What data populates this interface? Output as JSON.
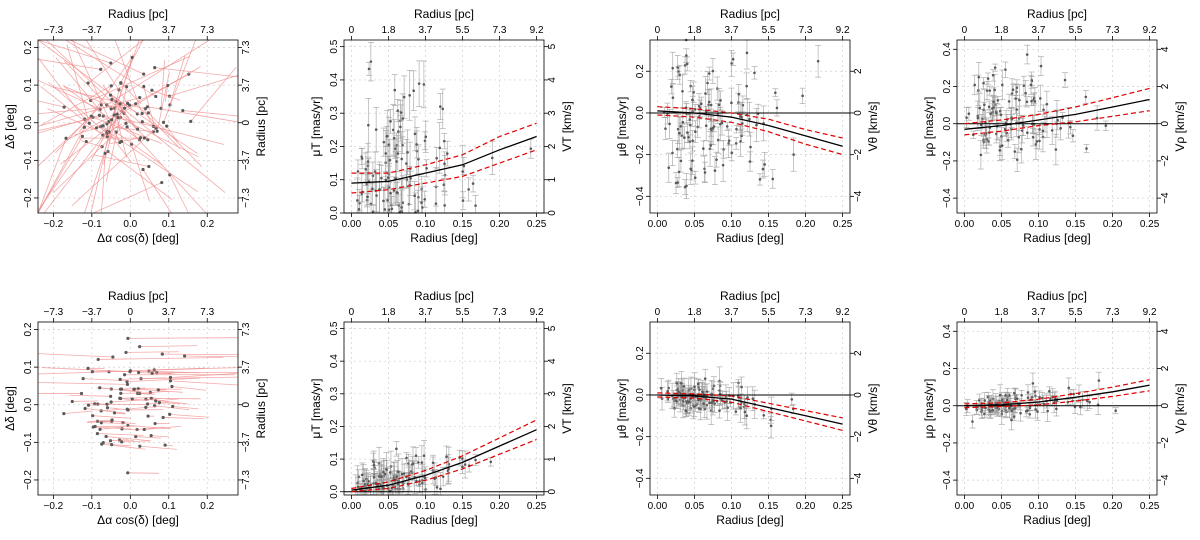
{
  "chart_data": [
    {
      "id": "r1c1",
      "type": "scatter",
      "subtype": "vector-field",
      "xlabel": "Δα cos(δ) [deg]",
      "ylabel": "Δδ [deg]",
      "x2label": "Radius [pc]",
      "y2label": "Radius [pc]",
      "xlim": [
        -0.24,
        0.28
      ],
      "ylim": [
        -0.24,
        0.22
      ],
      "xticks": [
        -0.2,
        -0.1,
        0.0,
        0.1,
        0.2
      ],
      "xtick_labels": [
        "−0.2",
        "−0.1",
        "0.0",
        "0.1",
        "0.2"
      ],
      "yticks": [
        -0.2,
        -0.1,
        0.0,
        0.1,
        0.2
      ],
      "ytick_labels": [
        "−0.2",
        "−0.1",
        "0.0",
        "0.1",
        "0.2"
      ],
      "x2ticks": [
        -0.2,
        -0.1,
        0.0,
        0.1,
        0.2
      ],
      "x2tick_labels": [
        "−7.3",
        "−3.7",
        "0",
        "3.7",
        "7.3"
      ],
      "y2ticks": [
        -0.2,
        -0.1,
        0.0,
        0.1,
        0.2
      ],
      "y2tick_labels": [
        "−7.3",
        "−3.7",
        "0",
        "3.7",
        "7.3"
      ],
      "vector_scale": 1.0,
      "n_points": 95,
      "seed": 11
    },
    {
      "id": "r1c2",
      "type": "scatter",
      "subtype": "profile",
      "metric": "total",
      "xlabel": "Radius [deg]",
      "ylabel": "μT [mas/yr]",
      "x2label": "Radius [pc]",
      "y2label": "VT [km/s]",
      "xlim": [
        -0.01,
        0.26
      ],
      "ylim": [
        0.0,
        0.52
      ],
      "xticks": [
        0.0,
        0.05,
        0.1,
        0.15,
        0.2,
        0.25
      ],
      "xtick_labels": [
        "0.00",
        "0.05",
        "0.10",
        "0.15",
        "0.20",
        "0.25"
      ],
      "yticks": [
        0.0,
        0.1,
        0.2,
        0.3,
        0.4,
        0.5
      ],
      "ytick_labels": [
        "0.0",
        "0.1",
        "0.2",
        "0.3",
        "0.4",
        "0.5"
      ],
      "x2ticks": [
        0.0,
        0.05,
        0.1,
        0.15,
        0.2,
        0.25
      ],
      "x2tick_labels": [
        "0",
        "1.8",
        "3.7",
        "5.5",
        "7.3",
        "9.2"
      ],
      "y2ticks": [
        0,
        1,
        2,
        3,
        4,
        5
      ],
      "y2tick_labels": [
        "0",
        "1",
        "2",
        "3",
        "4",
        "5"
      ],
      "y2lim": [
        0,
        5.2
      ],
      "trend_x": [
        0.0,
        0.05,
        0.1,
        0.15,
        0.2,
        0.25
      ],
      "trend_y": [
        0.09,
        0.095,
        0.12,
        0.145,
        0.19,
        0.23
      ],
      "ci_upper": [
        0.12,
        0.12,
        0.145,
        0.175,
        0.23,
        0.27
      ],
      "ci_lower": [
        0.06,
        0.07,
        0.09,
        0.11,
        0.15,
        0.19
      ],
      "zero_line": 0.0,
      "scatter_center": 0.14,
      "scatter_spread": 0.14,
      "err_mean": 0.06,
      "n_points": 120,
      "seed": 21
    },
    {
      "id": "r1c3",
      "type": "scatter",
      "subtype": "profile",
      "metric": "tangential",
      "xlabel": "Radius [deg]",
      "ylabel": "μθ [mas/yr]",
      "x2label": "Radius [pc]",
      "y2label": "Vθ [km/s]",
      "xlim": [
        -0.01,
        0.26
      ],
      "ylim": [
        -0.48,
        0.35
      ],
      "xticks": [
        0.0,
        0.05,
        0.1,
        0.15,
        0.2,
        0.25
      ],
      "xtick_labels": [
        "0.00",
        "0.05",
        "0.10",
        "0.15",
        "0.20",
        "0.25"
      ],
      "yticks": [
        -0.4,
        -0.2,
        0.0,
        0.2
      ],
      "ytick_labels": [
        "−0.4",
        "−0.2",
        "0.0",
        "0.2"
      ],
      "x2ticks": [
        0.0,
        0.05,
        0.1,
        0.15,
        0.2,
        0.25
      ],
      "x2tick_labels": [
        "0",
        "1.8",
        "3.7",
        "5.5",
        "7.3",
        "9.2"
      ],
      "y2ticks": [
        -4,
        -2,
        0,
        2
      ],
      "y2tick_labels": [
        "−4",
        "−2",
        "0",
        "2"
      ],
      "y2lim": [
        -4.8,
        3.5
      ],
      "trend_x": [
        0.0,
        0.05,
        0.1,
        0.15,
        0.2,
        0.25
      ],
      "trend_y": [
        0.01,
        0.0,
        -0.02,
        -0.06,
        -0.11,
        -0.16
      ],
      "ci_upper": [
        0.03,
        0.02,
        0.0,
        -0.03,
        -0.08,
        -0.12
      ],
      "ci_lower": [
        -0.01,
        -0.02,
        -0.045,
        -0.09,
        -0.15,
        -0.2
      ],
      "zero_line": 0.0,
      "scatter_center": -0.04,
      "scatter_spread": 0.16,
      "err_mean": 0.06,
      "n_points": 120,
      "seed": 31
    },
    {
      "id": "r1c4",
      "type": "scatter",
      "subtype": "profile",
      "metric": "radial",
      "xlabel": "Radius [deg]",
      "ylabel": "μρ [mas/yr]",
      "x2label": "Radius [pc]",
      "y2label": "Vρ [km/s]",
      "xlim": [
        -0.01,
        0.26
      ],
      "ylim": [
        -0.48,
        0.45
      ],
      "xticks": [
        0.0,
        0.05,
        0.1,
        0.15,
        0.2,
        0.25
      ],
      "xtick_labels": [
        "0.00",
        "0.05",
        "0.10",
        "0.15",
        "0.20",
        "0.25"
      ],
      "yticks": [
        -0.4,
        -0.2,
        0.0,
        0.2,
        0.4
      ],
      "ytick_labels": [
        "−0.4",
        "−0.2",
        "0.0",
        "0.2",
        "0.4"
      ],
      "x2ticks": [
        0.0,
        0.05,
        0.1,
        0.15,
        0.2,
        0.25
      ],
      "x2tick_labels": [
        "0",
        "1.8",
        "3.7",
        "5.5",
        "7.3",
        "9.2"
      ],
      "y2ticks": [
        -4,
        -2,
        0,
        2,
        4
      ],
      "y2tick_labels": [
        "−4",
        "−2",
        "0",
        "2",
        "4"
      ],
      "y2lim": [
        -4.8,
        4.5
      ],
      "trend_x": [
        0.0,
        0.05,
        0.1,
        0.15,
        0.2,
        0.25
      ],
      "trend_y": [
        -0.03,
        -0.01,
        0.02,
        0.05,
        0.09,
        0.13
      ],
      "ci_upper": [
        0.0,
        0.02,
        0.05,
        0.09,
        0.14,
        0.19
      ],
      "ci_lower": [
        -0.06,
        -0.04,
        -0.01,
        0.01,
        0.04,
        0.07
      ],
      "zero_line": 0.0,
      "scatter_center": 0.04,
      "scatter_spread": 0.14,
      "err_mean": 0.06,
      "n_points": 120,
      "seed": 41
    },
    {
      "id": "r2c1",
      "type": "scatter",
      "subtype": "vector-field",
      "xlabel": "Δα cos(δ) [deg]",
      "ylabel": "Δδ [deg]",
      "x2label": "Radius [pc]",
      "y2label": "Radius [pc]",
      "xlim": [
        -0.24,
        0.28
      ],
      "ylim": [
        -0.24,
        0.22
      ],
      "xticks": [
        -0.2,
        -0.1,
        0.0,
        0.1,
        0.2
      ],
      "xtick_labels": [
        "−0.2",
        "−0.1",
        "0.0",
        "0.1",
        "0.2"
      ],
      "yticks": [
        -0.2,
        -0.1,
        0.0,
        0.1,
        0.2
      ],
      "ytick_labels": [
        "−0.2",
        "−0.1",
        "0.0",
        "0.1",
        "0.2"
      ],
      "x2ticks": [
        -0.2,
        -0.1,
        0.0,
        0.1,
        0.2
      ],
      "x2tick_labels": [
        "−7.3",
        "−3.7",
        "0",
        "3.7",
        "7.3"
      ],
      "y2ticks": [
        -0.2,
        -0.1,
        0.0,
        0.1,
        0.2
      ],
      "y2tick_labels": [
        "−7.3",
        "−3.7",
        "0",
        "3.7",
        "7.3"
      ],
      "vector_scale": 0.35,
      "n_points": 95,
      "seed": 51
    },
    {
      "id": "r2c2",
      "type": "scatter",
      "subtype": "profile",
      "metric": "total",
      "xlabel": "Radius [deg]",
      "ylabel": "μT [mas/yr]",
      "x2label": "Radius [pc]",
      "y2label": "VT [km/s]",
      "xlim": [
        -0.01,
        0.26
      ],
      "ylim": [
        -0.01,
        0.52
      ],
      "xticks": [
        0.0,
        0.05,
        0.1,
        0.15,
        0.2,
        0.25
      ],
      "xtick_labels": [
        "0.00",
        "0.05",
        "0.10",
        "0.15",
        "0.20",
        "0.25"
      ],
      "yticks": [
        0.0,
        0.1,
        0.2,
        0.3,
        0.4,
        0.5
      ],
      "ytick_labels": [
        "0.0",
        "0.1",
        "0.2",
        "0.3",
        "0.4",
        "0.5"
      ],
      "x2ticks": [
        0.0,
        0.05,
        0.1,
        0.15,
        0.2,
        0.25
      ],
      "x2tick_labels": [
        "0",
        "1.8",
        "3.7",
        "5.5",
        "7.3",
        "9.2"
      ],
      "y2ticks": [
        0,
        1,
        2,
        3,
        4,
        5
      ],
      "y2tick_labels": [
        "0",
        "1",
        "2",
        "3",
        "4",
        "5"
      ],
      "y2lim": [
        -0.1,
        5.2
      ],
      "trend_x": [
        0.0,
        0.05,
        0.1,
        0.15,
        0.2,
        0.25
      ],
      "trend_y": [
        0.005,
        0.02,
        0.05,
        0.09,
        0.14,
        0.19
      ],
      "ci_upper": [
        0.01,
        0.03,
        0.065,
        0.11,
        0.165,
        0.22
      ],
      "ci_lower": [
        0.0,
        0.01,
        0.035,
        0.07,
        0.115,
        0.16
      ],
      "zero_line": 0.0,
      "scatter_center": 0.06,
      "scatter_spread": 0.06,
      "err_mean": 0.04,
      "n_points": 120,
      "seed": 61,
      "scatter_follows_trend": true
    },
    {
      "id": "r2c3",
      "type": "scatter",
      "subtype": "profile",
      "metric": "tangential",
      "xlabel": "Radius [deg]",
      "ylabel": "μθ [mas/yr]",
      "x2label": "Radius [pc]",
      "y2label": "Vθ [km/s]",
      "xlim": [
        -0.01,
        0.26
      ],
      "ylim": [
        -0.48,
        0.35
      ],
      "xticks": [
        0.0,
        0.05,
        0.1,
        0.15,
        0.2,
        0.25
      ],
      "xtick_labels": [
        "0.00",
        "0.05",
        "0.10",
        "0.15",
        "0.20",
        "0.25"
      ],
      "yticks": [
        -0.4,
        -0.2,
        0.0,
        0.2
      ],
      "ytick_labels": [
        "−0.4",
        "−0.2",
        "0.0",
        "0.2"
      ],
      "x2ticks": [
        0.0,
        0.05,
        0.1,
        0.15,
        0.2,
        0.25
      ],
      "x2tick_labels": [
        "0",
        "1.8",
        "3.7",
        "5.5",
        "7.3",
        "9.2"
      ],
      "y2ticks": [
        -4,
        -2,
        0,
        2
      ],
      "y2tick_labels": [
        "−4",
        "−2",
        "0",
        "2"
      ],
      "y2lim": [
        -4.8,
        3.5
      ],
      "trend_x": [
        0.0,
        0.05,
        0.1,
        0.15,
        0.2,
        0.25
      ],
      "trend_y": [
        0.0,
        -0.005,
        -0.02,
        -0.06,
        -0.1,
        -0.14
      ],
      "ci_upper": [
        0.01,
        0.005,
        -0.005,
        -0.04,
        -0.075,
        -0.11
      ],
      "ci_lower": [
        -0.01,
        -0.015,
        -0.035,
        -0.08,
        -0.125,
        -0.17
      ],
      "zero_line": 0.0,
      "scatter_center": -0.03,
      "scatter_spread": 0.05,
      "err_mean": 0.05,
      "n_points": 120,
      "seed": 71,
      "scatter_follows_trend": true
    },
    {
      "id": "r2c4",
      "type": "scatter",
      "subtype": "profile",
      "metric": "radial",
      "xlabel": "Radius [deg]",
      "ylabel": "μρ [mas/yr]",
      "x2label": "Radius [pc]",
      "y2label": "Vρ [km/s]",
      "xlim": [
        -0.01,
        0.26
      ],
      "ylim": [
        -0.48,
        0.45
      ],
      "xticks": [
        0.0,
        0.05,
        0.1,
        0.15,
        0.2,
        0.25
      ],
      "xtick_labels": [
        "0.00",
        "0.05",
        "0.10",
        "0.15",
        "0.20",
        "0.25"
      ],
      "yticks": [
        -0.4,
        -0.2,
        0.0,
        0.2,
        0.4
      ],
      "ytick_labels": [
        "−0.4",
        "−0.2",
        "0.0",
        "0.2",
        "0.4"
      ],
      "x2ticks": [
        0.0,
        0.05,
        0.1,
        0.15,
        0.2,
        0.25
      ],
      "x2tick_labels": [
        "0",
        "1.8",
        "3.7",
        "5.5",
        "7.3",
        "9.2"
      ],
      "y2ticks": [
        -4,
        -2,
        0,
        2,
        4
      ],
      "y2tick_labels": [
        "−4",
        "−2",
        "0",
        "2",
        "4"
      ],
      "y2lim": [
        -4.8,
        4.5
      ],
      "trend_x": [
        0.0,
        0.05,
        0.1,
        0.15,
        0.2,
        0.25
      ],
      "trend_y": [
        0.0,
        0.005,
        0.02,
        0.045,
        0.075,
        0.11
      ],
      "ci_upper": [
        0.01,
        0.015,
        0.035,
        0.065,
        0.1,
        0.14
      ],
      "ci_lower": [
        -0.01,
        -0.005,
        0.005,
        0.025,
        0.05,
        0.08
      ],
      "zero_line": 0.0,
      "scatter_center": 0.02,
      "scatter_spread": 0.05,
      "err_mean": 0.04,
      "n_points": 120,
      "seed": 81,
      "scatter_follows_trend": true
    }
  ],
  "colors": {
    "point": "#5a5a5a",
    "error_bar": "#9a9a9a",
    "vector": "#f08c8c",
    "trend": "#000000",
    "confidence": "#e00000",
    "grid": "#cfcfcf"
  }
}
